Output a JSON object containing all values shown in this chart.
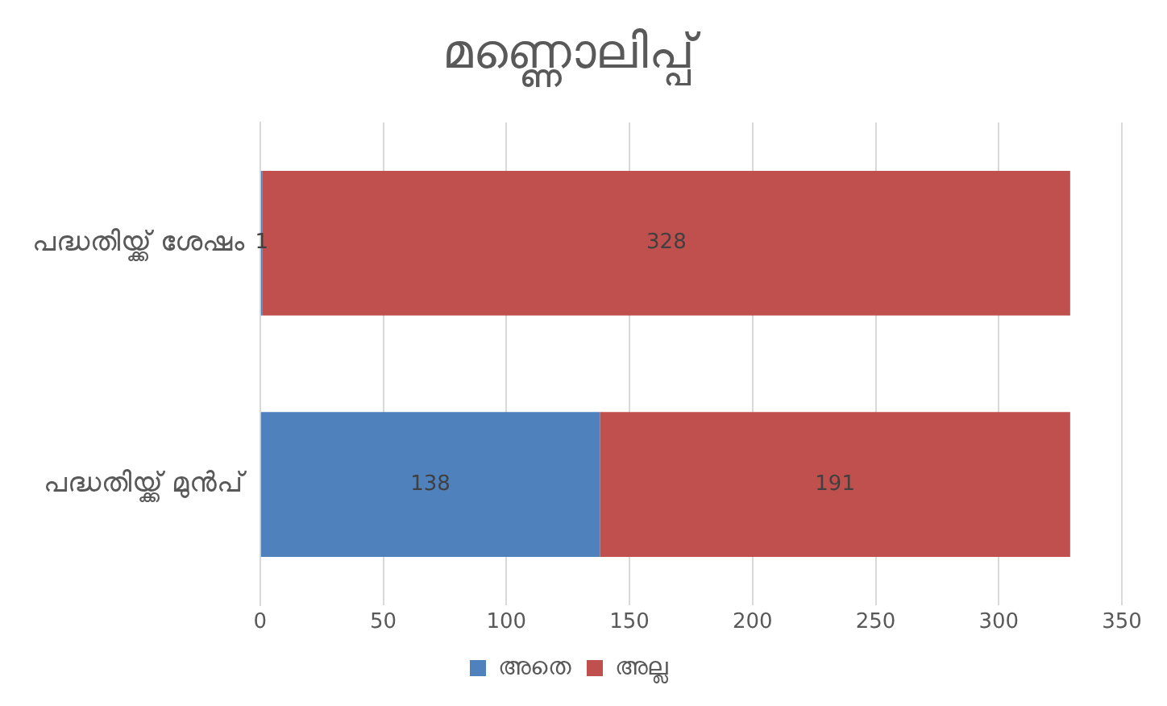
{
  "chart_data": {
    "type": "bar",
    "orientation": "horizontal",
    "stacked": true,
    "title": "മണ്ണൊലിപ്പ്",
    "categories": [
      "പദ്ധതിയ്ക്ക് ശേഷം",
      "പദ്ധതിയ്ക്ക് മുൻപ്"
    ],
    "series": [
      {
        "name": "അതെ",
        "color": "#4f81bd",
        "values": [
          1,
          138
        ]
      },
      {
        "name": "അല്ല",
        "color": "#c0504d",
        "values": [
          328,
          191
        ]
      }
    ],
    "xlim": [
      0,
      350
    ],
    "xticks": [
      0,
      50,
      100,
      150,
      200,
      250,
      300,
      350
    ],
    "grid": "x",
    "legend": "bottom",
    "data_labels": true
  }
}
